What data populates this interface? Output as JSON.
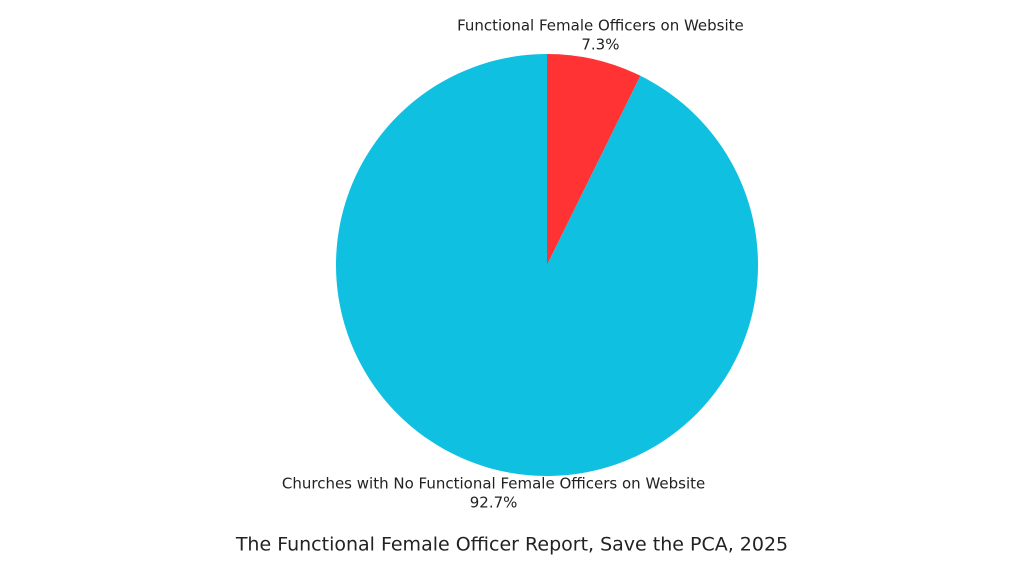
{
  "chart_data": {
    "type": "pie",
    "title": "The Functional Female Officer Report, Save the PCA, 2025",
    "categories": [
      "Functional Female Officers on Website",
      "Churches with No Functional Female Officers on Website"
    ],
    "values": [
      7.3,
      92.7
    ],
    "value_labels": [
      "7.3%",
      "92.7%"
    ],
    "colors": [
      "#ff3333",
      "#10c0e0"
    ]
  }
}
